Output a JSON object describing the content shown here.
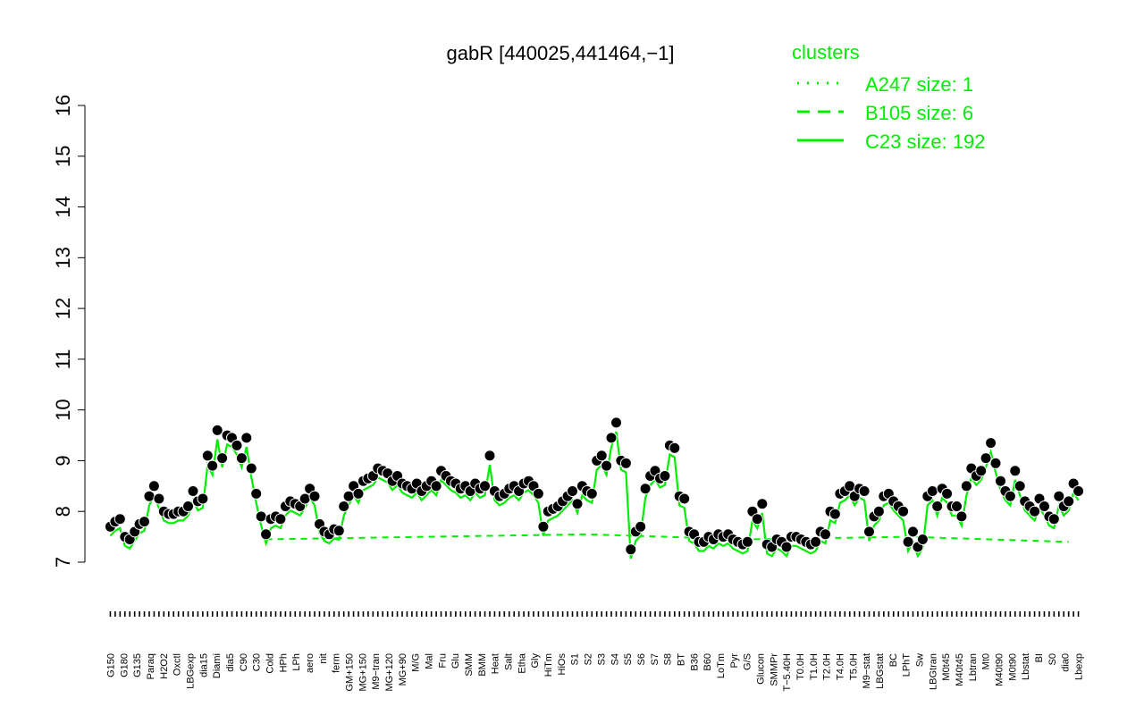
{
  "chart_data": {
    "type": "line",
    "title": "gabR [440025,441464,−1]",
    "xlabel": "",
    "ylabel": "",
    "ylim": [
      7,
      16
    ],
    "yticks": [
      7,
      8,
      9,
      10,
      11,
      12,
      13,
      14,
      15,
      16
    ],
    "grid": false,
    "line_color": "#00ee00",
    "point_fill": "#000000",
    "point_stroke": "#ffffff",
    "xtick_labels": [
      "G150",
      "G180",
      "G135",
      "Paraq",
      "H2O2",
      "Oxctl",
      "LBGexp",
      "dia15",
      "Diami",
      "dia5",
      "C90",
      "C30",
      "Cold",
      "HPh",
      "LPh",
      "aero",
      "nit",
      "ferm",
      "GM+150",
      "MG+150",
      "M9−tran",
      "MG+120",
      "MG+90",
      "M/G",
      "Mal",
      "Fru",
      "Glu",
      "SMM",
      "BMM",
      "Heat",
      "Salt",
      "Etha",
      "Gly",
      "HiTm",
      "HiOs",
      "S1",
      "S2",
      "S3",
      "S4",
      "S5",
      "S6",
      "S7",
      "S8",
      "BT",
      "B36",
      "B60",
      "LoTm",
      "Pyr",
      "G/S",
      "Glucon",
      "SMMPr",
      "T−5.40H",
      "T0.0H",
      "T1.0H",
      "T2.0H",
      "T4.0H",
      "T5.0H",
      "M9−stat",
      "LBGstat",
      "BC",
      "LPhT",
      "Sw",
      "LBGtran",
      "M0t45",
      "M40t45",
      "Lbtran",
      "Mt0",
      "M40t90",
      "M0t90",
      "Lbstat",
      "BI",
      "S0",
      "dia0",
      "Lbexp"
    ],
    "legend": {
      "title": "clusters",
      "position": "top-right",
      "color": "#00ee00",
      "entries": [
        {
          "label": "A247 size: 1",
          "style": "dotted"
        },
        {
          "label": "B105 size: 6",
          "style": "dashed"
        },
        {
          "label": "C23 size: 192",
          "style": "solid"
        }
      ]
    },
    "points": [
      [
        1,
        7.7
      ],
      [
        2,
        7.8
      ],
      [
        3,
        7.85
      ],
      [
        4,
        7.5
      ],
      [
        5,
        7.45
      ],
      [
        6,
        7.6
      ],
      [
        7,
        7.75
      ],
      [
        8,
        7.8
      ],
      [
        9,
        8.3
      ],
      [
        10,
        8.5
      ],
      [
        11,
        8.25
      ],
      [
        12,
        8.0
      ],
      [
        13,
        7.95
      ],
      [
        14,
        7.95
      ],
      [
        15,
        8.0
      ],
      [
        16,
        8.0
      ],
      [
        17,
        8.1
      ],
      [
        18,
        8.4
      ],
      [
        19,
        8.2
      ],
      [
        20,
        8.25
      ],
      [
        21,
        9.1
      ],
      [
        22,
        8.9
      ],
      [
        23,
        9.6
      ],
      [
        24,
        9.05
      ],
      [
        25,
        9.5
      ],
      [
        26,
        9.45
      ],
      [
        27,
        9.3
      ],
      [
        28,
        9.05
      ],
      [
        29,
        9.45
      ],
      [
        30,
        8.85
      ],
      [
        31,
        8.35
      ],
      [
        32,
        7.9
      ],
      [
        33,
        7.55
      ],
      [
        34,
        7.85
      ],
      [
        35,
        7.9
      ],
      [
        36,
        7.85
      ],
      [
        37,
        8.1
      ],
      [
        38,
        8.2
      ],
      [
        39,
        8.15
      ],
      [
        40,
        8.1
      ],
      [
        41,
        8.25
      ],
      [
        42,
        8.45
      ],
      [
        43,
        8.3
      ],
      [
        44,
        7.75
      ],
      [
        45,
        7.6
      ],
      [
        46,
        7.55
      ],
      [
        47,
        7.65
      ],
      [
        48,
        7.62
      ],
      [
        49,
        8.1
      ],
      [
        50,
        8.3
      ],
      [
        51,
        8.5
      ],
      [
        52,
        8.35
      ],
      [
        53,
        8.6
      ],
      [
        54,
        8.65
      ],
      [
        55,
        8.7
      ],
      [
        56,
        8.85
      ],
      [
        57,
        8.8
      ],
      [
        58,
        8.75
      ],
      [
        59,
        8.6
      ],
      [
        60,
        8.7
      ],
      [
        61,
        8.55
      ],
      [
        62,
        8.5
      ],
      [
        63,
        8.45
      ],
      [
        64,
        8.55
      ],
      [
        65,
        8.4
      ],
      [
        66,
        8.5
      ],
      [
        67,
        8.6
      ],
      [
        68,
        8.5
      ],
      [
        69,
        8.8
      ],
      [
        70,
        8.7
      ],
      [
        71,
        8.6
      ],
      [
        72,
        8.55
      ],
      [
        73,
        8.45
      ],
      [
        74,
        8.5
      ],
      [
        75,
        8.4
      ],
      [
        76,
        8.55
      ],
      [
        77,
        8.45
      ],
      [
        78,
        8.5
      ],
      [
        79,
        9.1
      ],
      [
        80,
        8.4
      ],
      [
        81,
        8.3
      ],
      [
        82,
        8.35
      ],
      [
        83,
        8.45
      ],
      [
        84,
        8.5
      ],
      [
        85,
        8.4
      ],
      [
        86,
        8.55
      ],
      [
        87,
        8.6
      ],
      [
        88,
        8.5
      ],
      [
        89,
        8.35
      ],
      [
        90,
        7.7
      ],
      [
        91,
        8.0
      ],
      [
        92,
        8.05
      ],
      [
        93,
        8.1
      ],
      [
        94,
        8.2
      ],
      [
        95,
        8.3
      ],
      [
        96,
        8.4
      ],
      [
        97,
        8.15
      ],
      [
        98,
        8.5
      ],
      [
        99,
        8.4
      ],
      [
        100,
        8.35
      ],
      [
        101,
        9.0
      ],
      [
        102,
        9.1
      ],
      [
        103,
        8.9
      ],
      [
        104,
        9.45
      ],
      [
        105,
        9.75
      ],
      [
        106,
        9.0
      ],
      [
        107,
        8.95
      ],
      [
        108,
        7.25
      ],
      [
        109,
        7.6
      ],
      [
        110,
        7.7
      ],
      [
        111,
        8.45
      ],
      [
        112,
        8.7
      ],
      [
        113,
        8.8
      ],
      [
        114,
        8.65
      ],
      [
        115,
        8.7
      ],
      [
        116,
        9.3
      ],
      [
        117,
        9.25
      ],
      [
        118,
        8.3
      ],
      [
        119,
        8.25
      ],
      [
        120,
        7.6
      ],
      [
        121,
        7.55
      ],
      [
        122,
        7.4
      ],
      [
        123,
        7.4
      ],
      [
        124,
        7.5
      ],
      [
        125,
        7.45
      ],
      [
        126,
        7.55
      ],
      [
        127,
        7.5
      ],
      [
        128,
        7.55
      ],
      [
        129,
        7.45
      ],
      [
        130,
        7.4
      ],
      [
        131,
        7.35
      ],
      [
        132,
        7.4
      ],
      [
        133,
        8.0
      ],
      [
        134,
        7.85
      ],
      [
        135,
        8.15
      ],
      [
        136,
        7.35
      ],
      [
        137,
        7.3
      ],
      [
        138,
        7.45
      ],
      [
        139,
        7.4
      ],
      [
        140,
        7.3
      ],
      [
        141,
        7.5
      ],
      [
        142,
        7.5
      ],
      [
        143,
        7.45
      ],
      [
        144,
        7.4
      ],
      [
        145,
        7.35
      ],
      [
        146,
        7.4
      ],
      [
        147,
        7.6
      ],
      [
        148,
        7.55
      ],
      [
        149,
        8.0
      ],
      [
        150,
        7.95
      ],
      [
        151,
        8.35
      ],
      [
        152,
        8.4
      ],
      [
        153,
        8.5
      ],
      [
        154,
        8.3
      ],
      [
        155,
        8.45
      ],
      [
        156,
        8.4
      ],
      [
        157,
        7.6
      ],
      [
        158,
        7.9
      ],
      [
        159,
        8.0
      ],
      [
        160,
        8.3
      ],
      [
        161,
        8.35
      ],
      [
        162,
        8.2
      ],
      [
        163,
        8.1
      ],
      [
        164,
        8.0
      ],
      [
        165,
        7.4
      ],
      [
        166,
        7.6
      ],
      [
        167,
        7.3
      ],
      [
        168,
        7.45
      ],
      [
        169,
        8.3
      ],
      [
        170,
        8.4
      ],
      [
        171,
        8.1
      ],
      [
        172,
        8.45
      ],
      [
        173,
        8.35
      ],
      [
        174,
        8.1
      ],
      [
        175,
        8.1
      ],
      [
        176,
        7.9
      ],
      [
        177,
        8.5
      ],
      [
        178,
        8.85
      ],
      [
        179,
        8.7
      ],
      [
        180,
        8.8
      ],
      [
        181,
        9.05
      ],
      [
        182,
        9.35
      ],
      [
        183,
        8.95
      ],
      [
        184,
        8.6
      ],
      [
        185,
        8.4
      ],
      [
        186,
        8.3
      ],
      [
        187,
        8.8
      ],
      [
        188,
        8.5
      ],
      [
        189,
        8.2
      ],
      [
        190,
        8.1
      ],
      [
        191,
        8.0
      ],
      [
        192,
        8.25
      ],
      [
        193,
        8.1
      ],
      [
        194,
        7.9
      ],
      [
        195,
        7.85
      ],
      [
        196,
        8.3
      ],
      [
        197,
        8.1
      ],
      [
        198,
        8.2
      ],
      [
        199,
        8.55
      ],
      [
        200,
        8.4
      ]
    ],
    "cluster_dashed": [
      [
        1,
        7.45
      ],
      [
        2,
        7.5
      ],
      [
        3,
        7.55
      ],
      [
        4,
        7.45
      ],
      [
        5,
        7.5
      ],
      [
        6,
        7.4
      ]
    ]
  }
}
